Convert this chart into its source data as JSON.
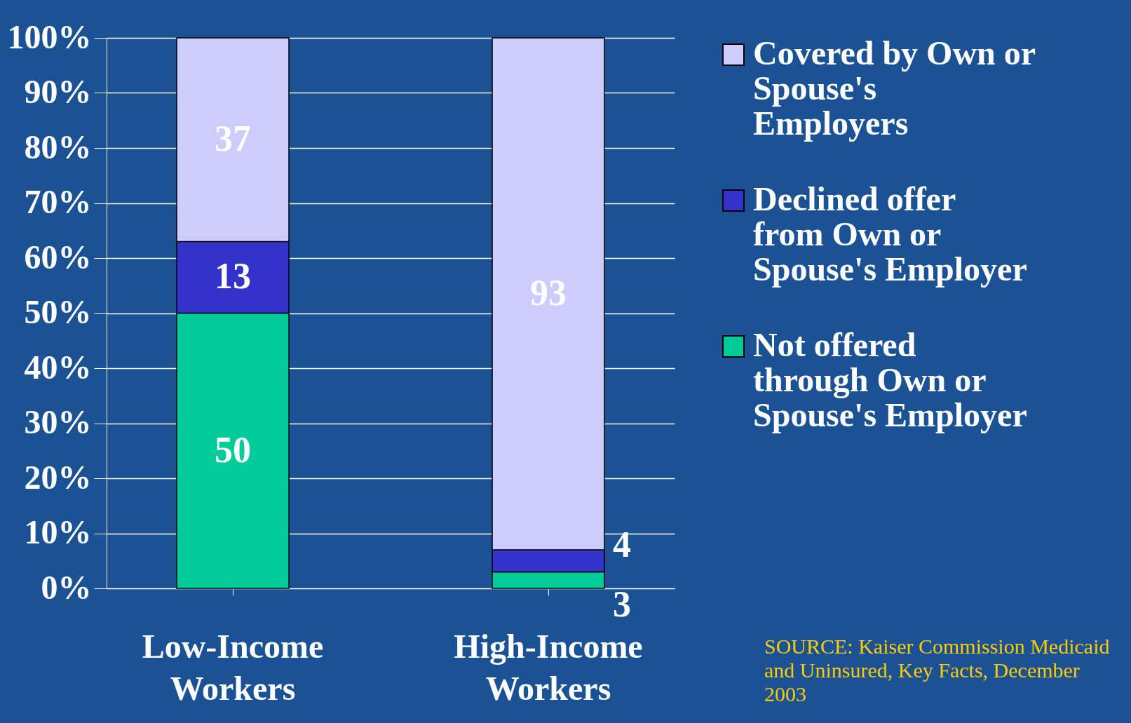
{
  "chart_data": {
    "type": "bar",
    "stacked": true,
    "categories": [
      "Low-Income Workers",
      "High-Income Workers"
    ],
    "series": [
      {
        "name": "Not offered through Own or Spouse's Employer",
        "color": "#00cc99",
        "values": [
          50,
          3
        ]
      },
      {
        "name": "Declined offer from Own or Spouse's Employer",
        "color": "#3333cc",
        "values": [
          13,
          4
        ]
      },
      {
        "name": "Covered by Own or Spouse's Employers",
        "color": "#ccccff",
        "values": [
          37,
          93
        ]
      }
    ],
    "ylim": [
      0,
      100
    ],
    "yticks": [
      {
        "value": 0,
        "label": "0%"
      },
      {
        "value": 10,
        "label": "10%"
      },
      {
        "value": 20,
        "label": "20%"
      },
      {
        "value": 30,
        "label": "30%"
      },
      {
        "value": 40,
        "label": "40%"
      },
      {
        "value": 50,
        "label": "50%"
      },
      {
        "value": 60,
        "label": "60%"
      },
      {
        "value": 70,
        "label": "70%"
      },
      {
        "value": 80,
        "label": "80%"
      },
      {
        "value": 90,
        "label": "90%"
      },
      {
        "value": 100,
        "label": "100%"
      }
    ],
    "grid": "y",
    "legend": "right",
    "data_labels": true,
    "annotations": [
      "SOURCE: Kaiser Commission Medicaid and Uninsured, Key Facts, December 2003"
    ]
  }
}
